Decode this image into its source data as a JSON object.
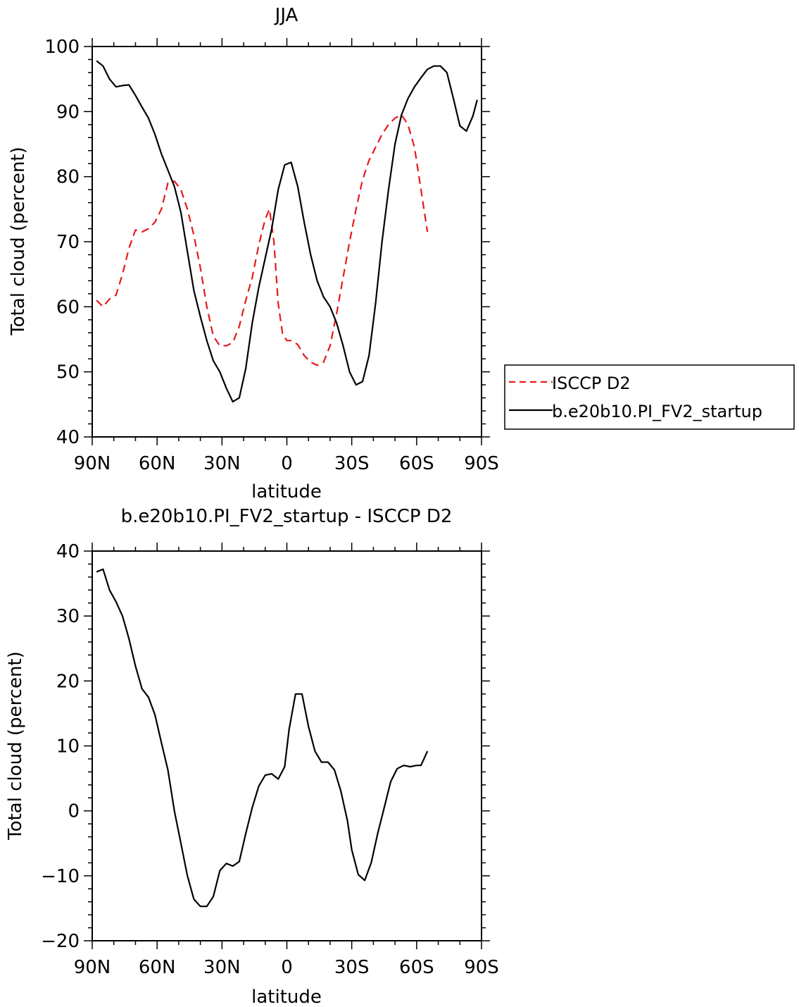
{
  "chart_data": [
    {
      "type": "line",
      "title": "JJA",
      "xlabel": "latitude",
      "ylabel": "Total cloud (percent)",
      "xlim": [
        90,
        -90
      ],
      "ylim": [
        40,
        100
      ],
      "x_ticks": [
        {
          "value": 90,
          "label": "90N"
        },
        {
          "value": 60,
          "label": "60N"
        },
        {
          "value": 30,
          "label": "30N"
        },
        {
          "value": 0,
          "label": "0"
        },
        {
          "value": -30,
          "label": "30S"
        },
        {
          "value": -60,
          "label": "60S"
        },
        {
          "value": -90,
          "label": "90S"
        }
      ],
      "y_ticks": [
        40,
        50,
        60,
        70,
        80,
        90,
        100
      ],
      "legend_position": "right",
      "series": [
        {
          "name": "ISCCP D2",
          "color": "#e41a1c",
          "style": "dashed",
          "x": [
            88,
            85,
            82,
            79,
            76,
            73,
            70,
            67,
            64,
            61,
            58,
            55,
            52,
            49,
            46,
            43,
            40,
            37,
            34,
            31,
            28,
            25,
            22,
            19,
            16,
            13,
            10,
            8,
            6,
            4,
            2,
            0,
            -2,
            -5,
            -8,
            -11,
            -14,
            -17,
            -20,
            -23,
            -26,
            -29,
            -32,
            -35,
            -38,
            -41,
            -44,
            -47,
            -50,
            -53,
            -56,
            -59,
            -62,
            -65
          ],
          "y": [
            61,
            60,
            61.2,
            61.8,
            65,
            69,
            71.8,
            71.5,
            72,
            73,
            75,
            79,
            79.3,
            78,
            75,
            71,
            66,
            60,
            55.5,
            54,
            54,
            54.5,
            57,
            61,
            64.5,
            69.5,
            73.5,
            75,
            70,
            60.5,
            55.8,
            54.8,
            54.8,
            54.2,
            52.5,
            51.5,
            51,
            51.5,
            54,
            59,
            64.5,
            70,
            75,
            79.5,
            82.5,
            84.5,
            86.5,
            88,
            89,
            89.5,
            88,
            84.5,
            78,
            71.5
          ]
        },
        {
          "name": "b.e20b10.PI_FV2_startup",
          "color": "#000000",
          "style": "solid",
          "x": [
            88,
            85,
            82,
            79,
            76,
            73,
            70,
            67,
            64,
            61,
            58,
            55,
            52,
            49,
            46,
            43,
            40,
            37,
            34,
            31,
            28,
            25,
            22,
            19,
            16,
            13,
            10,
            7,
            4,
            1,
            -2,
            -5,
            -8,
            -11,
            -14,
            -17,
            -20,
            -23,
            -26,
            -29,
            -32,
            -35,
            -38,
            -41,
            -44,
            -47,
            -50,
            -53,
            -56,
            -59,
            -62,
            -65,
            -68,
            -71,
            -74,
            -77,
            -80,
            -83,
            -86,
            -88
          ],
          "y": [
            97.8,
            97,
            95,
            93.8,
            94,
            94.1,
            92.5,
            90.7,
            89,
            86.5,
            83.5,
            81,
            78.5,
            74.5,
            68.5,
            62.5,
            58.5,
            54.8,
            51.7,
            50,
            47.5,
            45.4,
            46,
            50.5,
            57.5,
            63,
            67.5,
            72,
            78,
            81.8,
            82.2,
            78.5,
            73,
            68,
            64,
            61.5,
            60,
            57.5,
            54,
            50,
            48,
            48.5,
            52.5,
            60.5,
            70,
            78,
            85,
            89.5,
            92,
            93.8,
            95.2,
            96.5,
            97,
            97,
            96,
            92,
            87.8,
            87,
            89.3,
            91.8
          ]
        }
      ]
    },
    {
      "type": "line",
      "title": "b.e20b10.PI_FV2_startup - ISCCP D2",
      "xlabel": "latitude",
      "ylabel": "Total cloud (percent)",
      "xlim": [
        90,
        -90
      ],
      "ylim": [
        -20,
        40
      ],
      "x_ticks": [
        {
          "value": 90,
          "label": "90N"
        },
        {
          "value": 60,
          "label": "60N"
        },
        {
          "value": 30,
          "label": "30N"
        },
        {
          "value": 0,
          "label": "0"
        },
        {
          "value": -30,
          "label": "30S"
        },
        {
          "value": -60,
          "label": "60S"
        },
        {
          "value": -90,
          "label": "90S"
        }
      ],
      "y_ticks": [
        -20,
        -10,
        0,
        10,
        20,
        30,
        40
      ],
      "series": [
        {
          "color": "#000000",
          "style": "solid",
          "x": [
            88,
            85,
            82,
            79,
            76,
            73,
            70,
            67,
            64,
            61,
            58,
            55,
            52,
            49,
            46,
            43,
            40,
            37,
            34,
            31,
            28,
            25,
            22,
            19,
            16,
            13,
            10,
            7,
            4,
            1,
            -1,
            -4,
            -7,
            -10,
            -13,
            -16,
            -19,
            -22,
            -25,
            -28,
            -30,
            -33,
            -36,
            -39,
            -42,
            -45,
            -48,
            -51,
            -54,
            -57,
            -60,
            -62,
            -65
          ],
          "y": [
            36.8,
            37.2,
            34,
            32.2,
            30,
            26.5,
            22.3,
            18.8,
            17.5,
            14.8,
            10.5,
            6.3,
            0,
            -5,
            -10,
            -13.6,
            -14.7,
            -14.7,
            -13.2,
            -9.2,
            -8.1,
            -8.5,
            -7.8,
            -3.5,
            0.5,
            3.8,
            5.5,
            5.7,
            4.9,
            6.8,
            12.5,
            18,
            18,
            13,
            9.2,
            7.5,
            7.5,
            6.3,
            3,
            -1.5,
            -6,
            -9.8,
            -10.7,
            -8,
            -3.5,
            0.5,
            4.5,
            6.5,
            7,
            6.8,
            7,
            7,
            9.2
          ]
        }
      ]
    }
  ]
}
